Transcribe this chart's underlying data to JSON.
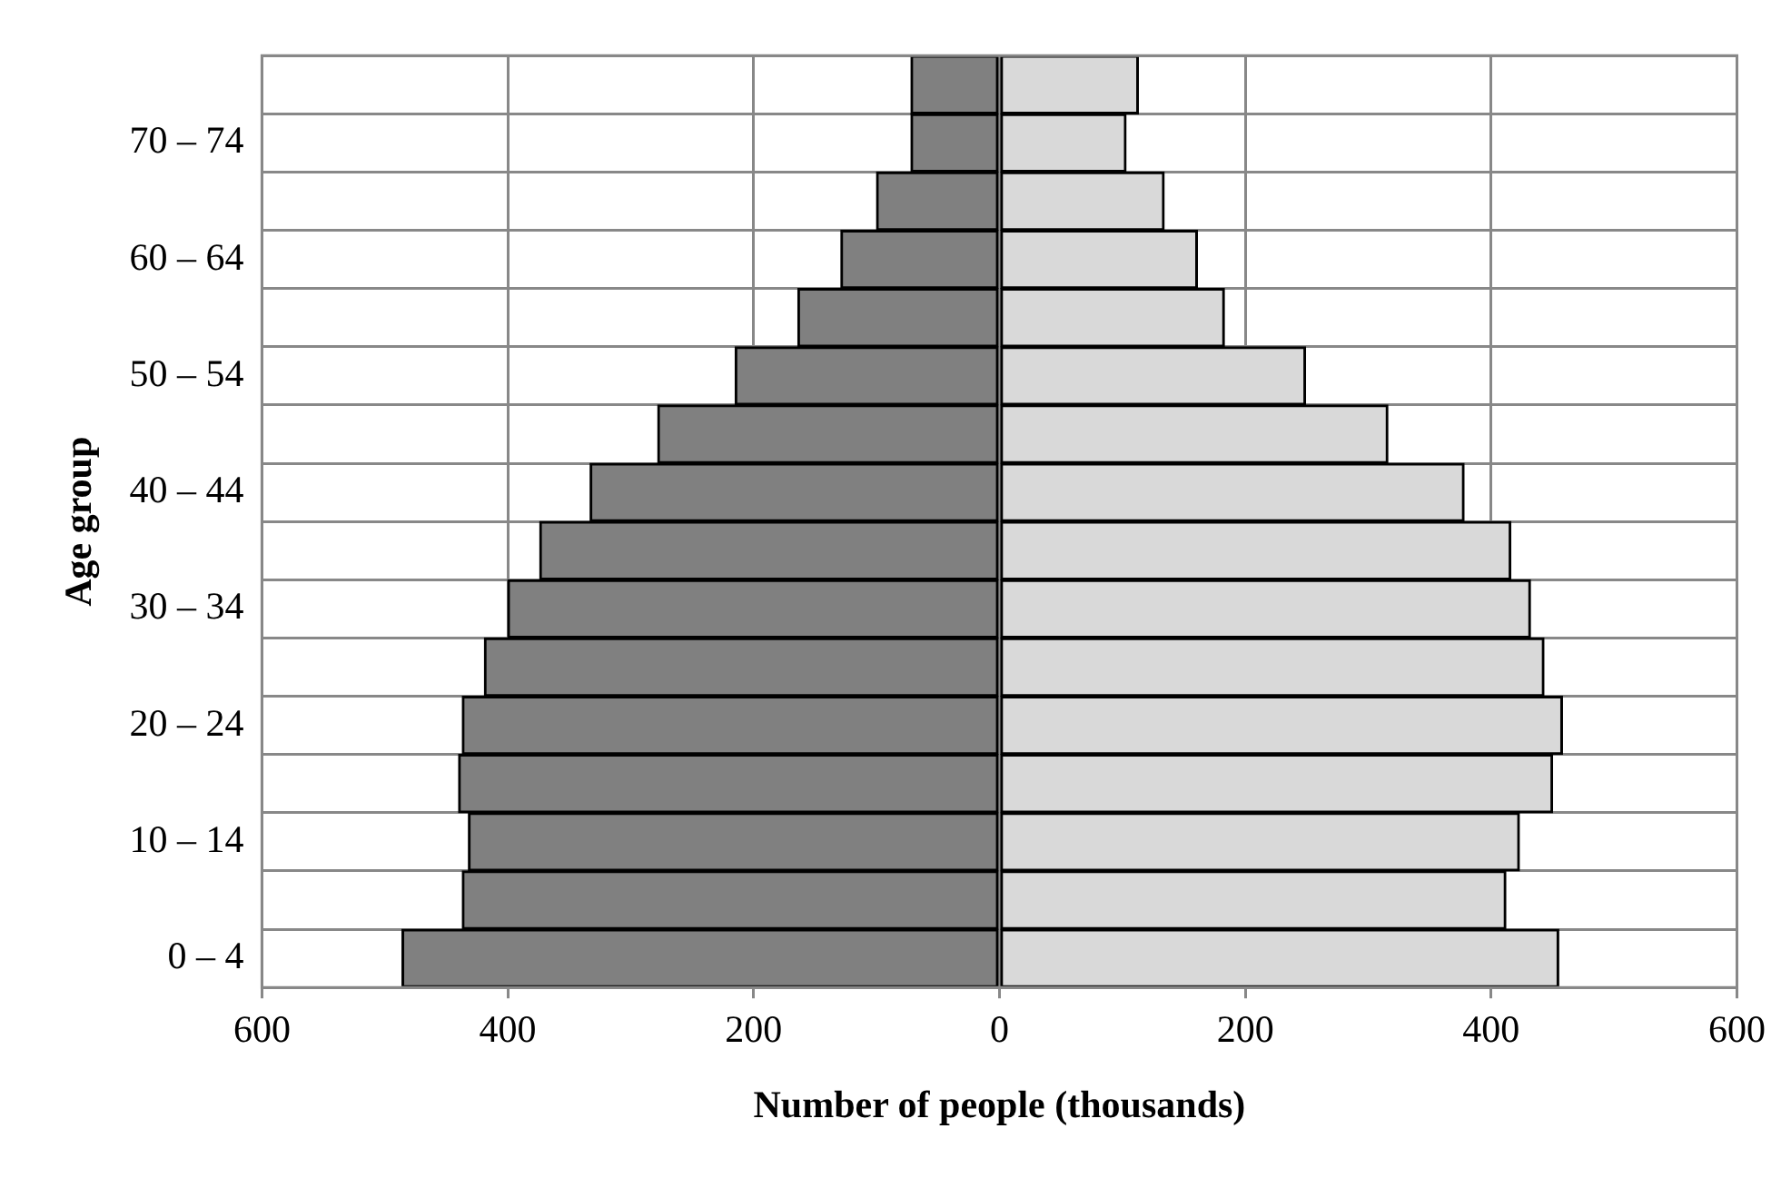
{
  "chart_data": {
    "type": "bar",
    "orientation": "horizontal",
    "stacked": true,
    "xlabel": "Number of people (thousands)",
    "ylabel": "Age group",
    "categories": [
      null,
      "70 – 74",
      null,
      "60 – 64",
      null,
      "50 – 54",
      null,
      "40 – 44",
      null,
      "30 – 34",
      null,
      "20 – 24",
      null,
      "10 – 14",
      null,
      "0 – 4"
    ],
    "series": [
      {
        "color": "#808080",
        "values": [
          -72,
          -72,
          -100,
          -129,
          -164,
          -215,
          -278,
          -333,
          -374,
          -400,
          -419,
          -437,
          -440,
          -432,
          -437,
          -486
        ]
      },
      {
        "color": "#d9d9d9",
        "values": [
          113,
          103,
          134,
          161,
          183,
          249,
          316,
          378,
          416,
          432,
          443,
          458,
          450,
          423,
          412,
          455
        ]
      }
    ],
    "xlim": [
      -600,
      600
    ],
    "xticks": [
      {
        "value": -600,
        "label": "600"
      },
      {
        "value": -400,
        "label": "400"
      },
      {
        "value": -200,
        "label": "200"
      },
      0,
      200,
      400,
      600
    ],
    "grid": true,
    "legend": false
  }
}
